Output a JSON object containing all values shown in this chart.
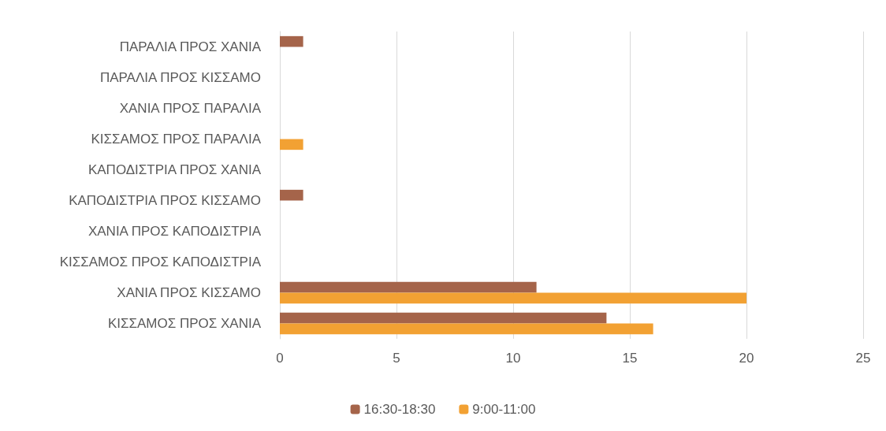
{
  "chart_data": {
    "type": "bar",
    "orientation": "horizontal",
    "categories": [
      "ΠΑΡΑΛΙΑ ΠΡΟΣ ΧΑΝΙΑ",
      "ΠΑΡΑΛΙΑ ΠΡΟΣ ΚΙΣΣΑΜΟ",
      "ΧΑΝΙΑ ΠΡΟΣ ΠΑΡΑΛΙΑ",
      "ΚΙΣΣΑΜΟΣ ΠΡΟΣ ΠΑΡΑΛΙΑ",
      "ΚΑΠΟΔΙΣΤΡΙΑ ΠΡΟΣ ΧΑΝΙΑ",
      "ΚΑΠΟΔΙΣΤΡΙΑ ΠΡΟΣ ΚΙΣΣΑΜΟ",
      "ΧΑΝΙΑ ΠΡΟΣ ΚΑΠΟΔΙΣΤΡΙΑ",
      "ΚΙΣΣΑΜΟΣ ΠΡΟΣ ΚΑΠΟΔΙΣΤΡΙΑ",
      "ΧΑΝΙΑ ΠΡΟΣ ΚΙΣΣΑΜΟ",
      "ΚΙΣΣΑΜΟΣ ΠΡΟΣ ΧΑΝΙΑ"
    ],
    "series": [
      {
        "name": "16:30-18:30",
        "color": "#a5644a",
        "values": [
          1,
          0,
          0,
          0,
          0,
          1,
          0,
          0,
          11,
          14
        ]
      },
      {
        "name": "9:00-11:00",
        "color": "#f2a133",
        "values": [
          0,
          0,
          0,
          1,
          0,
          0,
          0,
          0,
          20,
          16
        ]
      }
    ],
    "xlim": [
      0,
      25
    ],
    "xticks": [
      0,
      5,
      10,
      15,
      20,
      25
    ],
    "grid": "x",
    "legend": "bottom"
  }
}
